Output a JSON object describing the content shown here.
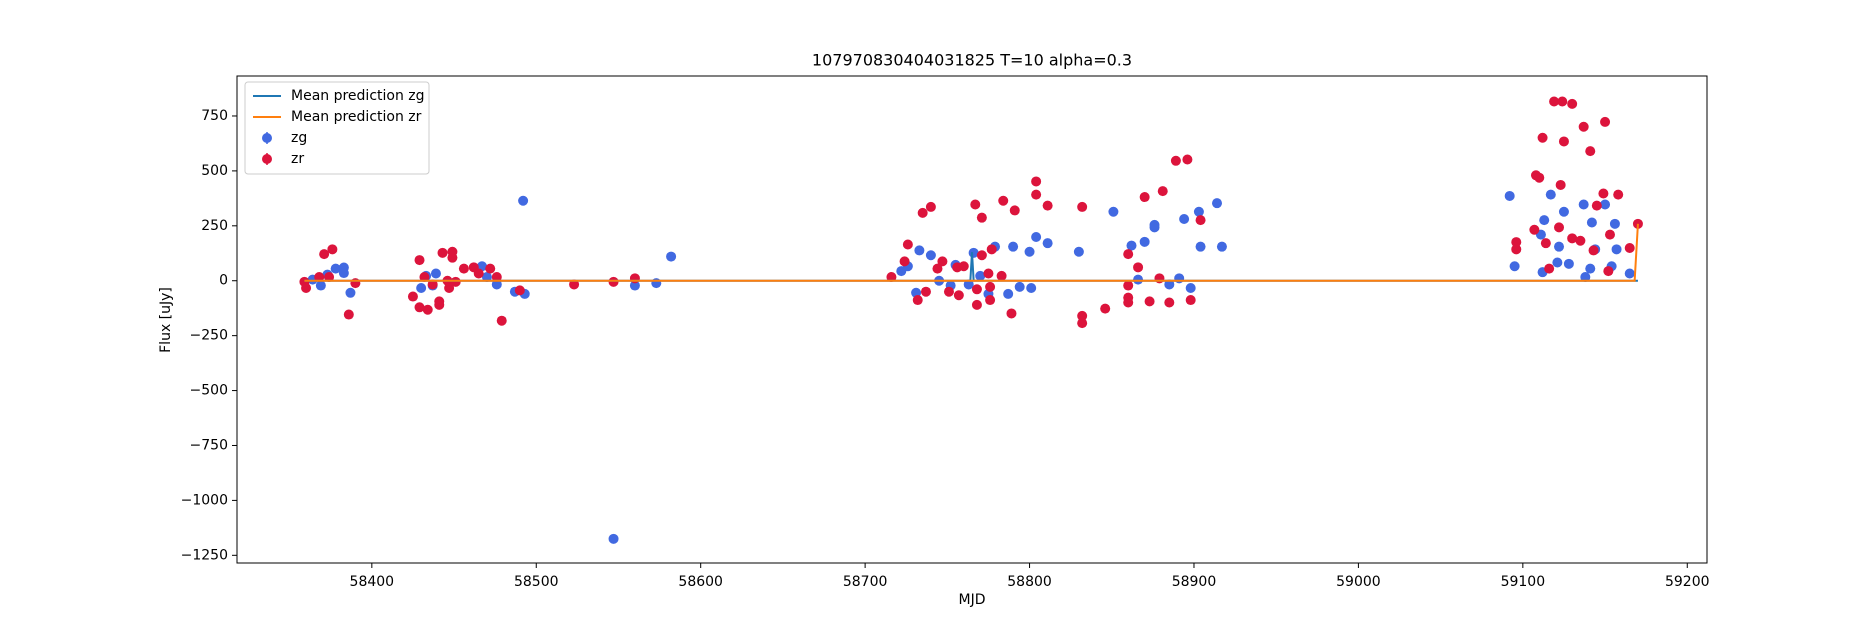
{
  "chart_data": {
    "type": "scatter",
    "title": "107970830404031825 T=10 alpha=0.3",
    "x_label": "MJD",
    "y_label": "Flux [uJy]",
    "xlim": [
      58318,
      59212
    ],
    "ylim": [
      -1285,
      932
    ],
    "xticks": [
      58400,
      58500,
      58600,
      58700,
      58800,
      58900,
      59000,
      59100,
      59200
    ],
    "yticks": [
      {
        "value": -1250,
        "label": "−1250"
      },
      {
        "value": -1000,
        "label": "−1000"
      },
      {
        "value": -750,
        "label": "−750"
      },
      {
        "value": -500,
        "label": "−500"
      },
      {
        "value": -250,
        "label": "−250"
      },
      0,
      250,
      500,
      750
    ],
    "legend": "upper left",
    "series": [
      {
        "name": "Mean prediction zg",
        "type": "line",
        "color": "#1f77b4",
        "x": [
          58359,
          58764,
          58765,
          58766,
          59170
        ],
        "values": [
          0,
          0,
          130,
          0,
          0
        ]
      },
      {
        "name": "Mean prediction zr",
        "type": "line",
        "color": "#ff7f0e",
        "x": [
          58359,
          59168,
          59170
        ],
        "values": [
          0,
          0,
          259
        ]
      },
      {
        "name": "zg",
        "type": "scatter",
        "color": "#4169e1",
        "x": [
          58364,
          58369,
          58373,
          58378,
          58383,
          58383,
          58387,
          58430,
          58433,
          58439,
          58437,
          58467,
          58470,
          58476,
          58487,
          58493,
          58492,
          58547,
          58560,
          58573,
          58582,
          58722,
          58726,
          58731,
          58733,
          58740,
          58745,
          58752,
          58755,
          58763,
          58766,
          58770,
          58775,
          58779,
          58787,
          58790,
          58794,
          58800,
          58801,
          58804,
          58811,
          58830,
          58851,
          58862,
          58866,
          58870,
          58876,
          58876,
          58885,
          58891,
          58894,
          58898,
          58903,
          58904,
          58914,
          58917,
          59092,
          59095,
          59111,
          59112,
          59113,
          59117,
          59121,
          59122,
          59125,
          59128,
          59137,
          59138,
          59141,
          59142,
          59144,
          59150,
          59154,
          59157,
          59156,
          59165
        ],
        "values": [
          5,
          -22,
          28,
          55,
          60,
          35,
          -55,
          -33,
          22,
          33,
          -22,
          66,
          17,
          -17,
          -50,
          -60,
          364,
          -1175,
          -22,
          -11,
          110,
          44,
          66,
          -55,
          138,
          116,
          0,
          -22,
          72,
          -17,
          127,
          22,
          -60,
          155,
          -60,
          155,
          -28,
          132,
          -33,
          199,
          171,
          132,
          314,
          160,
          5,
          177,
          243,
          254,
          -17,
          11,
          281,
          -33,
          314,
          155,
          353,
          155,
          386,
          66,
          210,
          39,
          276,
          392,
          83,
          155,
          314,
          77,
          347,
          17,
          55,
          265,
          143,
          347,
          66,
          143,
          259,
          33
        ]
      },
      {
        "name": "zr",
        "type": "scatter",
        "color": "#dc143c",
        "x": [
          58359,
          58360,
          58368,
          58371,
          58374,
          58376,
          58386,
          58390,
          58425,
          58429,
          58429,
          58434,
          58432,
          58437,
          58441,
          58441,
          58443,
          58446,
          58449,
          58449,
          58447,
          58451,
          58456,
          58462,
          58465,
          58472,
          58476,
          58479,
          58490,
          58523,
          58547,
          58560,
          58716,
          58724,
          58726,
          58732,
          58735,
          58737,
          58740,
          58744,
          58747,
          58751,
          58756,
          58757,
          58760,
          58767,
          58768,
          58768,
          58771,
          58771,
          58775,
          58776,
          58776,
          58777,
          58783,
          58784,
          58789,
          58791,
          58804,
          58804,
          58811,
          58832,
          58832,
          58832,
          58846,
          58860,
          58860,
          58860,
          58860,
          58866,
          58870,
          58873,
          58879,
          58881,
          58885,
          58889,
          58896,
          58898,
          58904,
          59096,
          59096,
          59107,
          59108,
          59110,
          59112,
          59114,
          59116,
          59119,
          59122,
          59123,
          59124,
          59125,
          59130,
          59130,
          59135,
          59137,
          59141,
          59143,
          59145,
          59149,
          59150,
          59152,
          59153,
          59158,
          59165,
          59170
        ],
        "values": [
          -5,
          -33,
          17,
          121,
          17,
          143,
          -154,
          -11,
          -72,
          94,
          -121,
          -132,
          17,
          -17,
          -94,
          -110,
          127,
          0,
          132,
          105,
          -33,
          -5,
          55,
          61,
          33,
          55,
          17,
          -182,
          -44,
          -17,
          -5,
          11,
          17,
          88,
          165,
          -88,
          309,
          -50,
          336,
          55,
          88,
          -50,
          61,
          -66,
          66,
          347,
          -110,
          -39,
          287,
          116,
          33,
          -88,
          -28,
          143,
          22,
          364,
          -149,
          320,
          452,
          392,
          342,
          336,
          -160,
          -193,
          -127,
          121,
          -22,
          -77,
          -99,
          61,
          381,
          -94,
          11,
          408,
          -99,
          546,
          552,
          -88,
          276,
          176,
          143,
          232,
          480,
          469,
          651,
          171,
          55,
          816,
          243,
          436,
          816,
          634,
          805,
          193,
          182,
          701,
          590,
          138,
          342,
          397,
          723,
          44,
          210,
          392,
          149,
          259
        ]
      }
    ]
  }
}
